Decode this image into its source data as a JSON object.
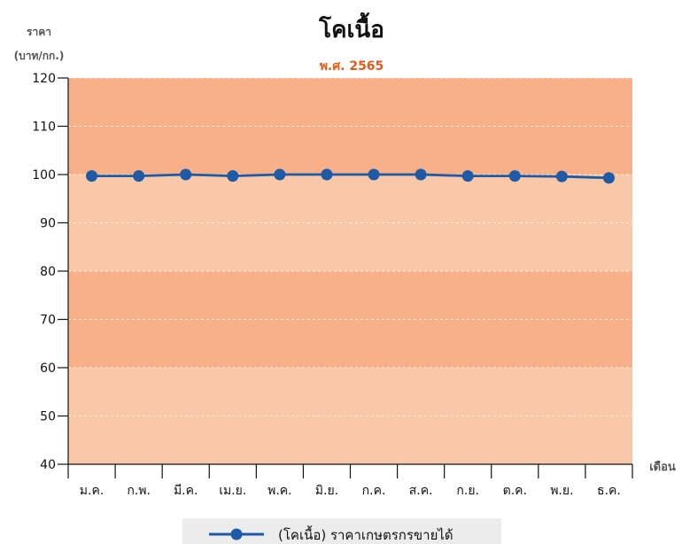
{
  "chart_data": {
    "type": "line",
    "title": "โคเนื้อ",
    "subtitle": "พ.ศ. 2565",
    "ylabel_line1": "ราคา",
    "ylabel_line2": "(บาท/กก.)",
    "xlabel": "เดือน",
    "ylim": [
      40,
      120
    ],
    "yticks": [
      40,
      50,
      60,
      70,
      80,
      90,
      100,
      110,
      120
    ],
    "categories": [
      "ม.ค.",
      "ก.พ.",
      "มี.ค.",
      "เม.ย.",
      "พ.ค.",
      "มิ.ย.",
      "ก.ค.",
      "ส.ค.",
      "ก.ย.",
      "ต.ค.",
      "พ.ย.",
      "ธ.ค."
    ],
    "series": [
      {
        "name": "(โคเนื้อ) ราคาเกษตรกรขายได้",
        "values": [
          99.7,
          99.7,
          100.0,
          99.7,
          100.0,
          100.0,
          100.0,
          100.0,
          99.7,
          99.7,
          99.6,
          99.3
        ],
        "color": "#1f5aa6"
      }
    ],
    "band_colors": [
      "#f7b088",
      "#f9c8a8"
    ],
    "subtitle_color": "#e05a1c",
    "grid": true,
    "legend_position": "bottom"
  }
}
